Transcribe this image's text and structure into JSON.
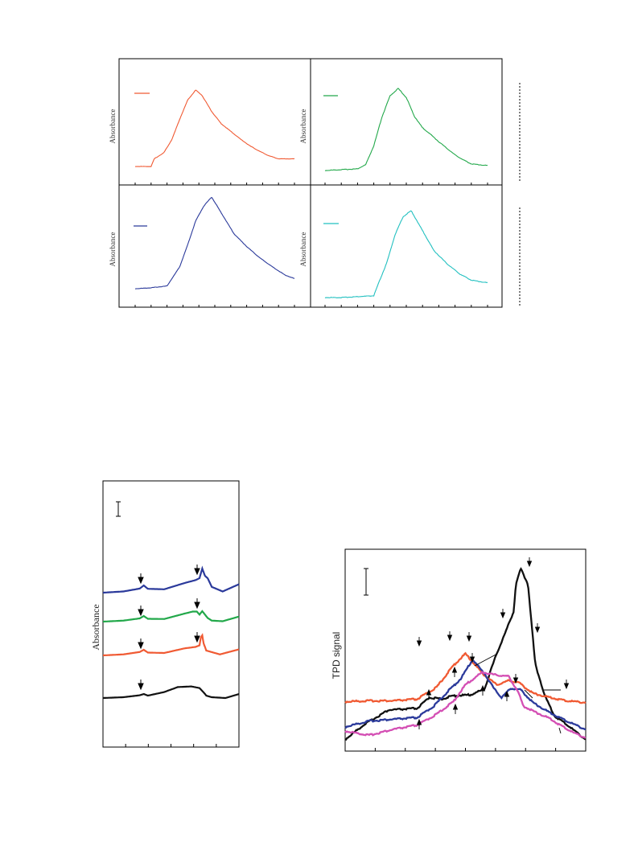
{
  "top_panels": {
    "ylabel": "Absorbance",
    "panels": [
      {
        "name": "panel-tl",
        "color": "#f05a33"
      },
      {
        "name": "panel-tr",
        "color": "#22a84a"
      },
      {
        "name": "panel-bl",
        "color": "#2b3a9b"
      },
      {
        "name": "panel-br",
        "color": "#22c0c0"
      }
    ]
  },
  "bottom_left": {
    "ylabel": "Absorbance"
  },
  "bottom_right": {
    "ylabel": "TPD signal"
  },
  "chart_data": [
    {
      "type": "line",
      "title": "",
      "xlabel": "",
      "ylabel": "Absorbance",
      "series": [
        {
          "color": "#f05a33",
          "x": [
            0,
            3,
            7,
            10,
            12,
            18,
            23,
            28,
            33,
            38,
            42,
            48,
            54,
            60,
            66,
            72,
            78,
            84,
            90,
            100
          ],
          "y": [
            0,
            0,
            0,
            0,
            0.1,
            0.18,
            0.35,
            0.62,
            0.87,
            1.0,
            0.93,
            0.72,
            0.56,
            0.46,
            0.36,
            0.27,
            0.2,
            0.14,
            0.1,
            0.1
          ]
        }
      ]
    },
    {
      "type": "line",
      "title": "",
      "xlabel": "",
      "ylabel": "Absorbance",
      "series": [
        {
          "color": "#22a84a",
          "x": [
            0,
            10,
            20,
            25,
            30,
            35,
            40,
            45,
            50,
            55,
            60,
            65,
            70,
            75,
            80,
            85,
            90,
            100
          ],
          "y": [
            0,
            0.01,
            0.02,
            0.07,
            0.3,
            0.65,
            0.91,
            1.0,
            0.89,
            0.66,
            0.52,
            0.44,
            0.35,
            0.27,
            0.19,
            0.13,
            0.08,
            0.06
          ]
        }
      ]
    },
    {
      "type": "line",
      "title": "",
      "xlabel": "",
      "ylabel": "Absorbance",
      "series": [
        {
          "color": "#2b3a9b",
          "x": [
            0,
            10,
            20,
            25,
            28,
            33,
            38,
            43,
            48,
            55,
            62,
            70,
            78,
            86,
            94,
            100
          ],
          "y": [
            0,
            0.01,
            0.03,
            0.16,
            0.24,
            0.48,
            0.74,
            0.9,
            1.0,
            0.8,
            0.6,
            0.46,
            0.34,
            0.24,
            0.15,
            0.11
          ]
        }
      ]
    },
    {
      "type": "line",
      "title": "",
      "xlabel": "",
      "ylabel": "Absorbance",
      "series": [
        {
          "color": "#22c0c0",
          "x": [
            0,
            10,
            20,
            30,
            32,
            38,
            43,
            48,
            53,
            60,
            67,
            75,
            83,
            90,
            100
          ],
          "y": [
            0,
            0,
            0.01,
            0.02,
            0.12,
            0.4,
            0.72,
            0.93,
            1.0,
            0.77,
            0.54,
            0.39,
            0.27,
            0.2,
            0.17
          ]
        }
      ]
    },
    {
      "type": "line",
      "title": "",
      "xlabel": "",
      "ylabel": "Absorbance",
      "series": [
        {
          "color": "#2b3a9b",
          "x": [
            0,
            15,
            27,
            30,
            33,
            45,
            60,
            68,
            71,
            73,
            75,
            77,
            80,
            88,
            100
          ],
          "y": [
            0,
            0.05,
            0.17,
            0.3,
            0.16,
            0.14,
            0.4,
            0.52,
            0.6,
            1.0,
            0.7,
            0.6,
            0.24,
            0.05,
            0.35
          ]
        },
        {
          "color": "#22a84a",
          "x": [
            0,
            15,
            27,
            30,
            33,
            45,
            60,
            66,
            69,
            71,
            73,
            77,
            80,
            88,
            100
          ],
          "y": [
            0,
            0.05,
            0.16,
            0.28,
            0.14,
            0.13,
            0.4,
            0.5,
            0.5,
            0.35,
            0.52,
            0.18,
            0.05,
            0.02,
            0.25
          ]
        },
        {
          "color": "#f05a33",
          "x": [
            0,
            15,
            27,
            30,
            33,
            45,
            60,
            68,
            71,
            72,
            73,
            74,
            76,
            86,
            100
          ],
          "y": [
            0,
            0.05,
            0.17,
            0.28,
            0.14,
            0.12,
            0.35,
            0.42,
            0.5,
            0.9,
            1.0,
            0.6,
            0.24,
            0.05,
            0.3
          ]
        },
        {
          "color": "#111111",
          "x": [
            0,
            15,
            27,
            30,
            33,
            45,
            55,
            65,
            71,
            74,
            76,
            80,
            90,
            100
          ],
          "y": [
            0,
            0.05,
            0.17,
            0.25,
            0.15,
            0.37,
            0.68,
            0.72,
            0.62,
            0.35,
            0.15,
            0.05,
            0.0,
            0.25
          ]
        }
      ]
    },
    {
      "type": "line",
      "title": "",
      "xlabel": "",
      "ylabel": "TPD signal",
      "series": [
        {
          "color": "#111111",
          "x": [
            0,
            8,
            18,
            30,
            35,
            40,
            45,
            52,
            58,
            60,
            63,
            67,
            70,
            71,
            73,
            76,
            79,
            83,
            87,
            92,
            100
          ],
          "y": [
            0.1,
            0.28,
            0.45,
            0.47,
            0.6,
            0.58,
            0.62,
            0.63,
            0.7,
            0.88,
            1.12,
            1.4,
            1.62,
            1.95,
            2.13,
            1.95,
            1.0,
            0.62,
            0.38,
            0.28,
            0.1
          ]
        },
        {
          "color": "#f05a33",
          "x": [
            0,
            10,
            20,
            30,
            38,
            45,
            50,
            53,
            58,
            63,
            68,
            72,
            78,
            85,
            92,
            100
          ],
          "y": [
            0.55,
            0.56,
            0.56,
            0.58,
            0.72,
            0.98,
            1.12,
            1.02,
            0.86,
            0.75,
            0.8,
            0.78,
            0.65,
            0.6,
            0.56,
            0.54
          ]
        },
        {
          "color": "#2b3a9b",
          "x": [
            0,
            10,
            20,
            30,
            37,
            43,
            48,
            53,
            58,
            62,
            65,
            69,
            73,
            78,
            85,
            92,
            100
          ],
          "y": [
            0.25,
            0.32,
            0.34,
            0.36,
            0.5,
            0.68,
            0.82,
            1.05,
            0.88,
            0.7,
            0.6,
            0.71,
            0.69,
            0.54,
            0.42,
            0.32,
            0.22
          ]
        },
        {
          "color": "#d44fb4",
          "x": [
            0,
            10,
            20,
            30,
            38,
            45,
            50,
            57,
            62,
            68,
            72,
            74,
            78,
            85,
            90,
            95,
            100
          ],
          "y": [
            0.2,
            0.15,
            0.22,
            0.27,
            0.4,
            0.55,
            0.75,
            0.9,
            0.87,
            0.85,
            0.66,
            0.5,
            0.44,
            0.35,
            0.26,
            0.18,
            0.12
          ]
        }
      ]
    }
  ]
}
